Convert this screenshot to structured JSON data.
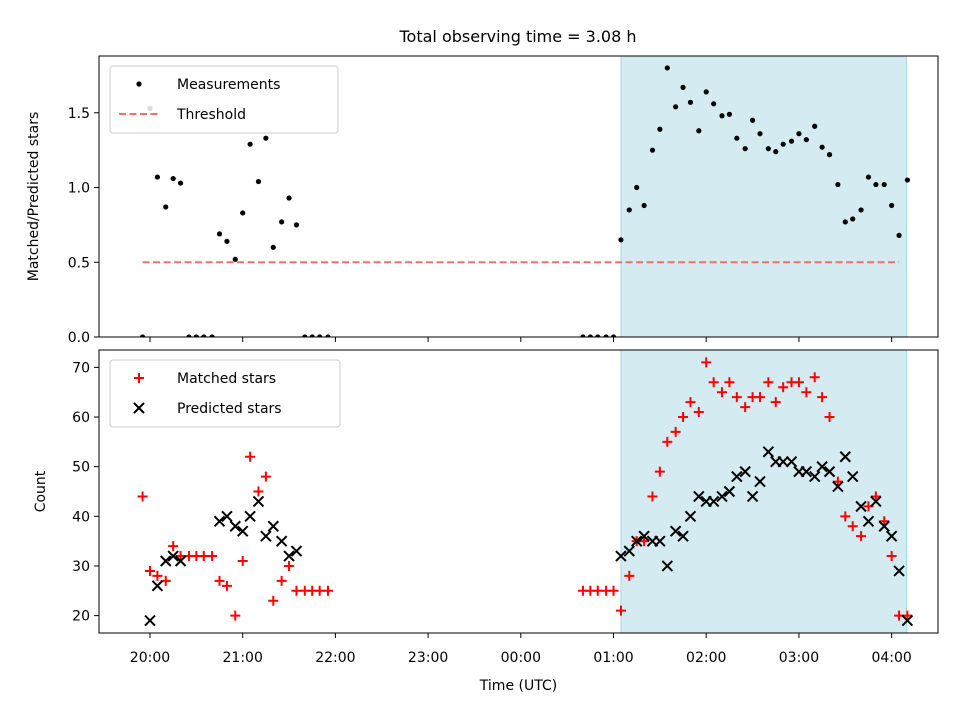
{
  "figure": {
    "title": "Total observing time = 3.08 h"
  },
  "chart_data": [
    {
      "type": "scatter",
      "ylabel": "Matched/Predicted stars",
      "xlabel": "",
      "x_ticks": [
        "20:00",
        "21:00",
        "22:00",
        "23:00",
        "00:00",
        "01:00",
        "02:00",
        "03:00",
        "04:00"
      ],
      "xlim": [
        -0.55,
        8.5
      ],
      "ylim": [
        0.0,
        1.88
      ],
      "y_ticks": [
        0.0,
        0.5,
        1.0,
        1.5
      ],
      "y_tick_labels": [
        "0.0",
        "0.5",
        "1.0",
        "1.5"
      ],
      "shaded_span": [
        5.08,
        8.16
      ],
      "shade_color": "#d3ebf1",
      "legend_position": "upper-left",
      "series": [
        {
          "name": "Measurements",
          "marker": "dot",
          "color": "#000000",
          "points": [
            [
              -0.08,
              0.0
            ],
            [
              0.0,
              1.53
            ],
            [
              0.08,
              1.07
            ],
            [
              0.17,
              0.87
            ],
            [
              0.25,
              1.06
            ],
            [
              0.33,
              1.03
            ],
            [
              0.42,
              0.0
            ],
            [
              0.5,
              0.0
            ],
            [
              0.58,
              0.0
            ],
            [
              0.67,
              0.0
            ],
            [
              0.75,
              0.69
            ],
            [
              0.83,
              0.64
            ],
            [
              0.92,
              0.52
            ],
            [
              1.0,
              0.83
            ],
            [
              1.08,
              1.29
            ],
            [
              1.17,
              1.04
            ],
            [
              1.25,
              1.33
            ],
            [
              1.33,
              0.6
            ],
            [
              1.42,
              0.77
            ],
            [
              1.5,
              0.93
            ],
            [
              1.58,
              0.75
            ],
            [
              1.67,
              0.0
            ],
            [
              1.75,
              0.0
            ],
            [
              1.83,
              0.0
            ],
            [
              1.92,
              0.0
            ],
            [
              4.67,
              0.0
            ],
            [
              4.75,
              0.0
            ],
            [
              4.83,
              0.0
            ],
            [
              4.92,
              0.0
            ],
            [
              5.0,
              0.0
            ],
            [
              5.08,
              0.65
            ],
            [
              5.17,
              0.85
            ],
            [
              5.25,
              1.0
            ],
            [
              5.33,
              0.88
            ],
            [
              5.42,
              1.25
            ],
            [
              5.5,
              1.39
            ],
            [
              5.58,
              1.8
            ],
            [
              5.67,
              1.54
            ],
            [
              5.75,
              1.67
            ],
            [
              5.83,
              1.57
            ],
            [
              5.92,
              1.38
            ],
            [
              6.0,
              1.64
            ],
            [
              6.08,
              1.56
            ],
            [
              6.17,
              1.48
            ],
            [
              6.25,
              1.49
            ],
            [
              6.33,
              1.33
            ],
            [
              6.42,
              1.26
            ],
            [
              6.5,
              1.45
            ],
            [
              6.58,
              1.36
            ],
            [
              6.67,
              1.26
            ],
            [
              6.75,
              1.24
            ],
            [
              6.83,
              1.29
            ],
            [
              6.92,
              1.31
            ],
            [
              7.0,
              1.36
            ],
            [
              7.08,
              1.32
            ],
            [
              7.17,
              1.41
            ],
            [
              7.25,
              1.27
            ],
            [
              7.33,
              1.22
            ],
            [
              7.42,
              1.02
            ],
            [
              7.5,
              0.77
            ],
            [
              7.58,
              0.79
            ],
            [
              7.67,
              0.85
            ],
            [
              7.75,
              1.07
            ],
            [
              7.83,
              1.02
            ],
            [
              7.92,
              1.02
            ],
            [
              8.0,
              0.88
            ],
            [
              8.08,
              0.68
            ],
            [
              8.17,
              1.05
            ]
          ]
        },
        {
          "name": "Threshold",
          "marker": "dashed-line",
          "color": "#f07070",
          "points": [
            [
              -0.08,
              0.5
            ],
            [
              8.08,
              0.5
            ]
          ]
        }
      ]
    },
    {
      "type": "scatter",
      "ylabel": "Count",
      "xlabel": "Time (UTC)",
      "x_ticks": [
        "20:00",
        "21:00",
        "22:00",
        "23:00",
        "00:00",
        "01:00",
        "02:00",
        "03:00",
        "04:00"
      ],
      "xlim": [
        -0.55,
        8.5
      ],
      "ylim": [
        16.5,
        73.5
      ],
      "y_ticks": [
        20,
        30,
        40,
        50,
        60,
        70
      ],
      "y_tick_labels": [
        "20",
        "30",
        "40",
        "50",
        "60",
        "70"
      ],
      "shaded_span": [
        5.08,
        8.16
      ],
      "shade_color": "#d3ebf1",
      "legend_position": "upper-left",
      "series": [
        {
          "name": "Matched stars",
          "marker": "plus",
          "color": "#ff0000",
          "points": [
            [
              -0.08,
              44
            ],
            [
              0.0,
              29
            ],
            [
              0.08,
              28
            ],
            [
              0.17,
              27
            ],
            [
              0.25,
              34
            ],
            [
              0.33,
              32
            ],
            [
              0.42,
              32
            ],
            [
              0.5,
              32
            ],
            [
              0.58,
              32
            ],
            [
              0.67,
              32
            ],
            [
              0.75,
              27
            ],
            [
              0.83,
              26
            ],
            [
              0.92,
              20
            ],
            [
              1.0,
              31
            ],
            [
              1.08,
              52
            ],
            [
              1.17,
              45
            ],
            [
              1.25,
              48
            ],
            [
              1.33,
              23
            ],
            [
              1.42,
              27
            ],
            [
              1.5,
              30
            ],
            [
              1.58,
              25
            ],
            [
              1.67,
              25
            ],
            [
              1.75,
              25
            ],
            [
              1.83,
              25
            ],
            [
              1.92,
              25
            ],
            [
              4.67,
              25
            ],
            [
              4.75,
              25
            ],
            [
              4.83,
              25
            ],
            [
              4.92,
              25
            ],
            [
              5.0,
              25
            ],
            [
              5.08,
              21
            ],
            [
              5.17,
              28
            ],
            [
              5.25,
              35
            ],
            [
              5.33,
              35
            ],
            [
              5.42,
              44
            ],
            [
              5.5,
              49
            ],
            [
              5.58,
              55
            ],
            [
              5.67,
              57
            ],
            [
              5.75,
              60
            ],
            [
              5.83,
              63
            ],
            [
              5.92,
              61
            ],
            [
              6.0,
              71
            ],
            [
              6.08,
              67
            ],
            [
              6.17,
              65
            ],
            [
              6.25,
              67
            ],
            [
              6.33,
              64
            ],
            [
              6.42,
              62
            ],
            [
              6.5,
              64
            ],
            [
              6.58,
              64
            ],
            [
              6.67,
              67
            ],
            [
              6.75,
              63
            ],
            [
              6.83,
              66
            ],
            [
              6.92,
              67
            ],
            [
              7.0,
              67
            ],
            [
              7.08,
              65
            ],
            [
              7.17,
              68
            ],
            [
              7.25,
              64
            ],
            [
              7.33,
              60
            ],
            [
              7.42,
              47
            ],
            [
              7.5,
              40
            ],
            [
              7.58,
              38
            ],
            [
              7.67,
              36
            ],
            [
              7.75,
              42
            ],
            [
              7.83,
              44
            ],
            [
              7.92,
              39
            ],
            [
              8.0,
              32
            ],
            [
              8.08,
              20
            ],
            [
              8.17,
              20
            ]
          ]
        },
        {
          "name": "Predicted stars",
          "marker": "x",
          "color": "#000000",
          "points": [
            [
              0.0,
              19
            ],
            [
              0.08,
              26
            ],
            [
              0.17,
              31
            ],
            [
              0.25,
              32
            ],
            [
              0.33,
              31
            ],
            [
              0.75,
              39
            ],
            [
              0.83,
              40
            ],
            [
              0.92,
              38
            ],
            [
              1.0,
              37
            ],
            [
              1.08,
              40
            ],
            [
              1.17,
              43
            ],
            [
              1.25,
              36
            ],
            [
              1.33,
              38
            ],
            [
              1.42,
              35
            ],
            [
              1.5,
              32
            ],
            [
              1.58,
              33
            ],
            [
              5.08,
              32
            ],
            [
              5.17,
              33
            ],
            [
              5.25,
              35
            ],
            [
              5.33,
              36
            ],
            [
              5.42,
              35
            ],
            [
              5.5,
              35
            ],
            [
              5.58,
              30
            ],
            [
              5.67,
              37
            ],
            [
              5.75,
              36
            ],
            [
              5.83,
              40
            ],
            [
              5.92,
              44
            ],
            [
              6.0,
              43
            ],
            [
              6.08,
              43
            ],
            [
              6.17,
              44
            ],
            [
              6.25,
              45
            ],
            [
              6.33,
              48
            ],
            [
              6.42,
              49
            ],
            [
              6.5,
              44
            ],
            [
              6.58,
              47
            ],
            [
              6.67,
              53
            ],
            [
              6.75,
              51
            ],
            [
              6.83,
              51
            ],
            [
              6.92,
              51
            ],
            [
              7.0,
              49
            ],
            [
              7.08,
              49
            ],
            [
              7.17,
              48
            ],
            [
              7.25,
              50
            ],
            [
              7.33,
              49
            ],
            [
              7.42,
              46
            ],
            [
              7.5,
              52
            ],
            [
              7.58,
              48
            ],
            [
              7.67,
              42
            ],
            [
              7.75,
              39
            ],
            [
              7.83,
              43
            ],
            [
              7.92,
              38
            ],
            [
              8.0,
              36
            ],
            [
              8.08,
              29
            ],
            [
              8.17,
              19
            ]
          ]
        }
      ]
    }
  ]
}
